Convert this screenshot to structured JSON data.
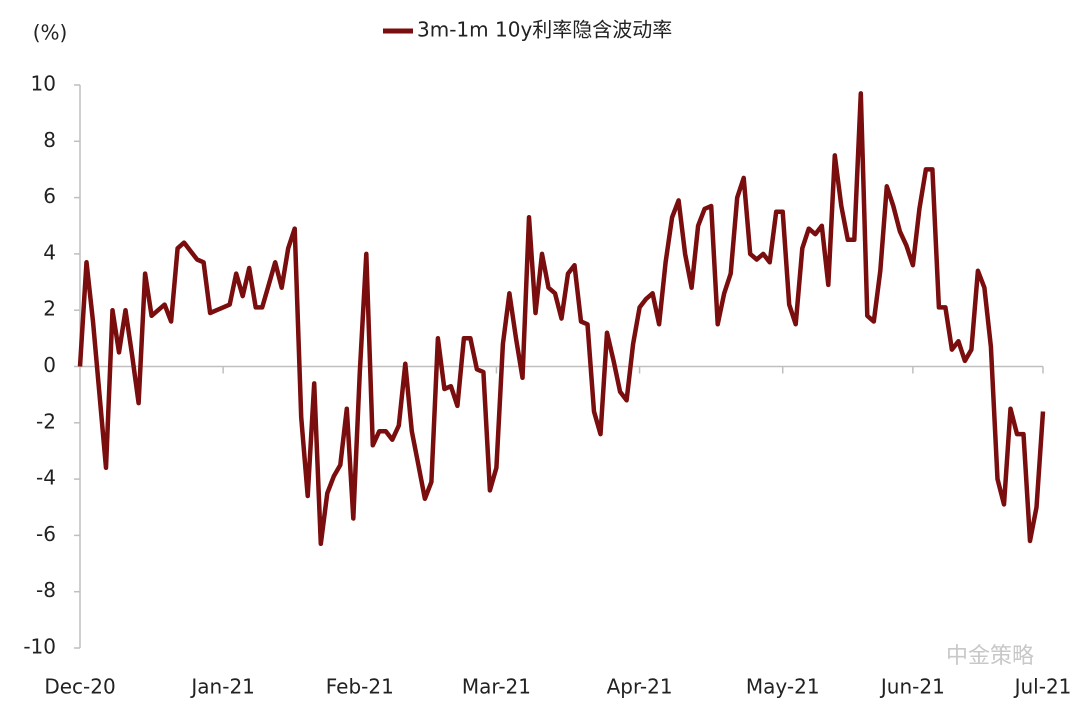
{
  "chart_data": {
    "type": "line",
    "unit_label": "(%)",
    "watermark": "中金策略",
    "categories": [
      "Dec-20",
      null,
      null,
      null,
      null,
      null,
      null,
      null,
      null,
      null,
      null,
      null,
      null,
      null,
      null,
      null,
      null,
      null,
      null,
      null,
      null,
      null,
      "Jan-21",
      null,
      null,
      null,
      null,
      null,
      null,
      null,
      null,
      null,
      null,
      null,
      null,
      null,
      null,
      null,
      null,
      null,
      null,
      null,
      null,
      "Feb-21",
      null,
      null,
      null,
      null,
      null,
      null,
      null,
      null,
      null,
      null,
      null,
      null,
      null,
      null,
      null,
      null,
      null,
      null,
      null,
      null,
      "Mar-21",
      null,
      null,
      null,
      null,
      null,
      null,
      null,
      null,
      null,
      null,
      null,
      null,
      null,
      null,
      null,
      null,
      null,
      null,
      null,
      null,
      null,
      "Apr-21",
      null,
      null,
      null,
      null,
      null,
      null,
      null,
      null,
      null,
      null,
      null,
      null,
      null,
      null,
      null,
      null,
      null,
      null,
      null,
      null,
      null,
      "May-21",
      null,
      null,
      null,
      null,
      null,
      null,
      null,
      null,
      null,
      null,
      null,
      null,
      null,
      null,
      null,
      null,
      null,
      null,
      null,
      "Jun-21",
      null,
      null,
      null,
      null,
      null,
      null,
      null,
      null,
      null,
      null,
      null,
      null,
      null,
      null,
      null,
      null,
      null,
      null,
      null,
      "Jul-21"
    ],
    "series": [
      {
        "name": "3m-1m 10y利率隐含波动率",
        "color": "#7a0d0d",
        "values": [
          0,
          3.7,
          1.6,
          -1.0,
          -3.6,
          2.0,
          0.5,
          2.0,
          0.4,
          -1.3,
          3.3,
          1.8,
          2.0,
          2.2,
          1.6,
          4.2,
          4.4,
          4.1,
          3.8,
          3.7,
          1.9,
          2.0,
          2.1,
          2.2,
          3.3,
          2.5,
          3.5,
          2.1,
          2.1,
          2.9,
          3.7,
          2.8,
          4.2,
          4.9,
          -1.8,
          -4.6,
          -0.6,
          -6.3,
          -4.5,
          -3.9,
          -3.5,
          -1.5,
          -5.4,
          -0.2,
          4.0,
          -2.8,
          -2.3,
          -2.3,
          -2.6,
          -2.1,
          0.1,
          -2.3,
          -3.5,
          -4.7,
          -4.1,
          1.0,
          -0.8,
          -0.7,
          -1.4,
          1.0,
          1.0,
          -0.1,
          -0.2,
          -4.4,
          -3.6,
          0.8,
          2.6,
          1.0,
          -0.4,
          5.3,
          1.9,
          4.0,
          2.8,
          2.6,
          1.7,
          3.3,
          3.6,
          1.6,
          1.5,
          -1.6,
          -2.4,
          1.2,
          0.2,
          -0.9,
          -1.2,
          0.8,
          2.1,
          2.4,
          2.6,
          1.5,
          3.7,
          5.3,
          5.9,
          4.0,
          2.8,
          5.0,
          5.6,
          5.7,
          1.5,
          2.6,
          3.3,
          6.0,
          6.7,
          4.0,
          3.8,
          4.0,
          3.7,
          5.5,
          5.5,
          2.2,
          1.5,
          4.2,
          4.9,
          4.7,
          5.0,
          2.9,
          7.5,
          5.7,
          4.5,
          4.5,
          9.7,
          1.8,
          1.6,
          3.4,
          6.4,
          5.7,
          4.8,
          4.3,
          3.6,
          5.6,
          7.0,
          7.0,
          2.1,
          2.1,
          0.6,
          0.9,
          0.2,
          0.6,
          3.4,
          2.8,
          0.7,
          -4.0,
          -4.9,
          -1.5,
          -2.4,
          -2.4,
          -6.2,
          -5.0,
          -1.6
        ]
      }
    ],
    "ylim": [
      -10,
      10
    ],
    "yticks": [
      -10,
      -8,
      -6,
      -4,
      -2,
      0,
      2,
      4,
      6,
      8,
      10
    ],
    "grid": false,
    "legend": "top"
  }
}
